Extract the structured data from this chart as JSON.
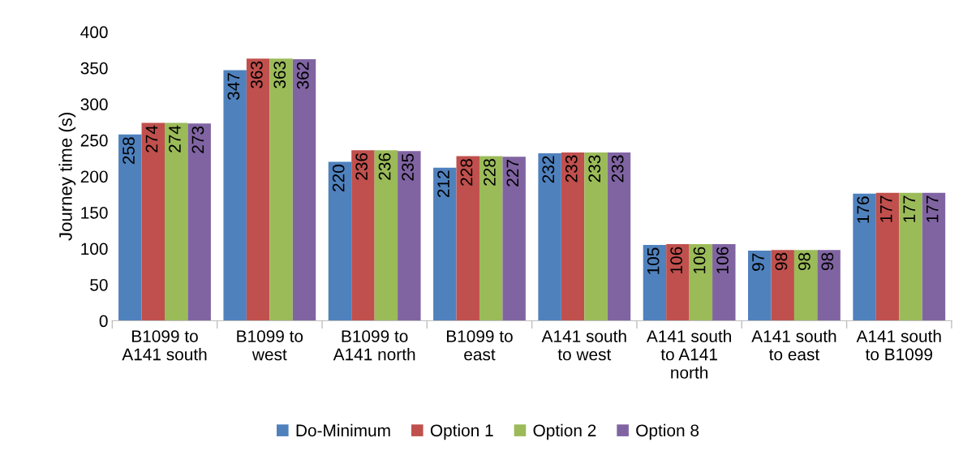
{
  "chart_data": {
    "type": "bar",
    "ylabel": "Journey time (s)",
    "categories": [
      "B1099 to\nA141 south",
      "B1099 to\nwest",
      "B1099 to\nA141 north",
      "B1099 to\neast",
      "A141 south\nto west",
      "A141 south\nto A141\nnorth",
      "A141 south\nto east",
      "A141 south\nto B1099"
    ],
    "series": [
      {
        "name": "Do-Minimum",
        "color": "#4f81bd",
        "values": [
          258,
          347,
          220,
          212,
          232,
          105,
          97,
          176
        ]
      },
      {
        "name": "Option 1",
        "color": "#c0504d",
        "values": [
          274,
          363,
          236,
          228,
          233,
          106,
          98,
          177
        ]
      },
      {
        "name": "Option 2",
        "color": "#9bbb59",
        "values": [
          274,
          363,
          236,
          228,
          233,
          106,
          98,
          177
        ]
      },
      {
        "name": "Option 8",
        "color": "#8064a2",
        "values": [
          273,
          362,
          235,
          227,
          233,
          106,
          98,
          177
        ]
      }
    ],
    "ylim": [
      0,
      400
    ],
    "yticks": [
      0,
      50,
      100,
      150,
      200,
      250,
      300,
      350,
      400
    ],
    "data_labels": true,
    "grid": false,
    "legend": "bottom"
  }
}
